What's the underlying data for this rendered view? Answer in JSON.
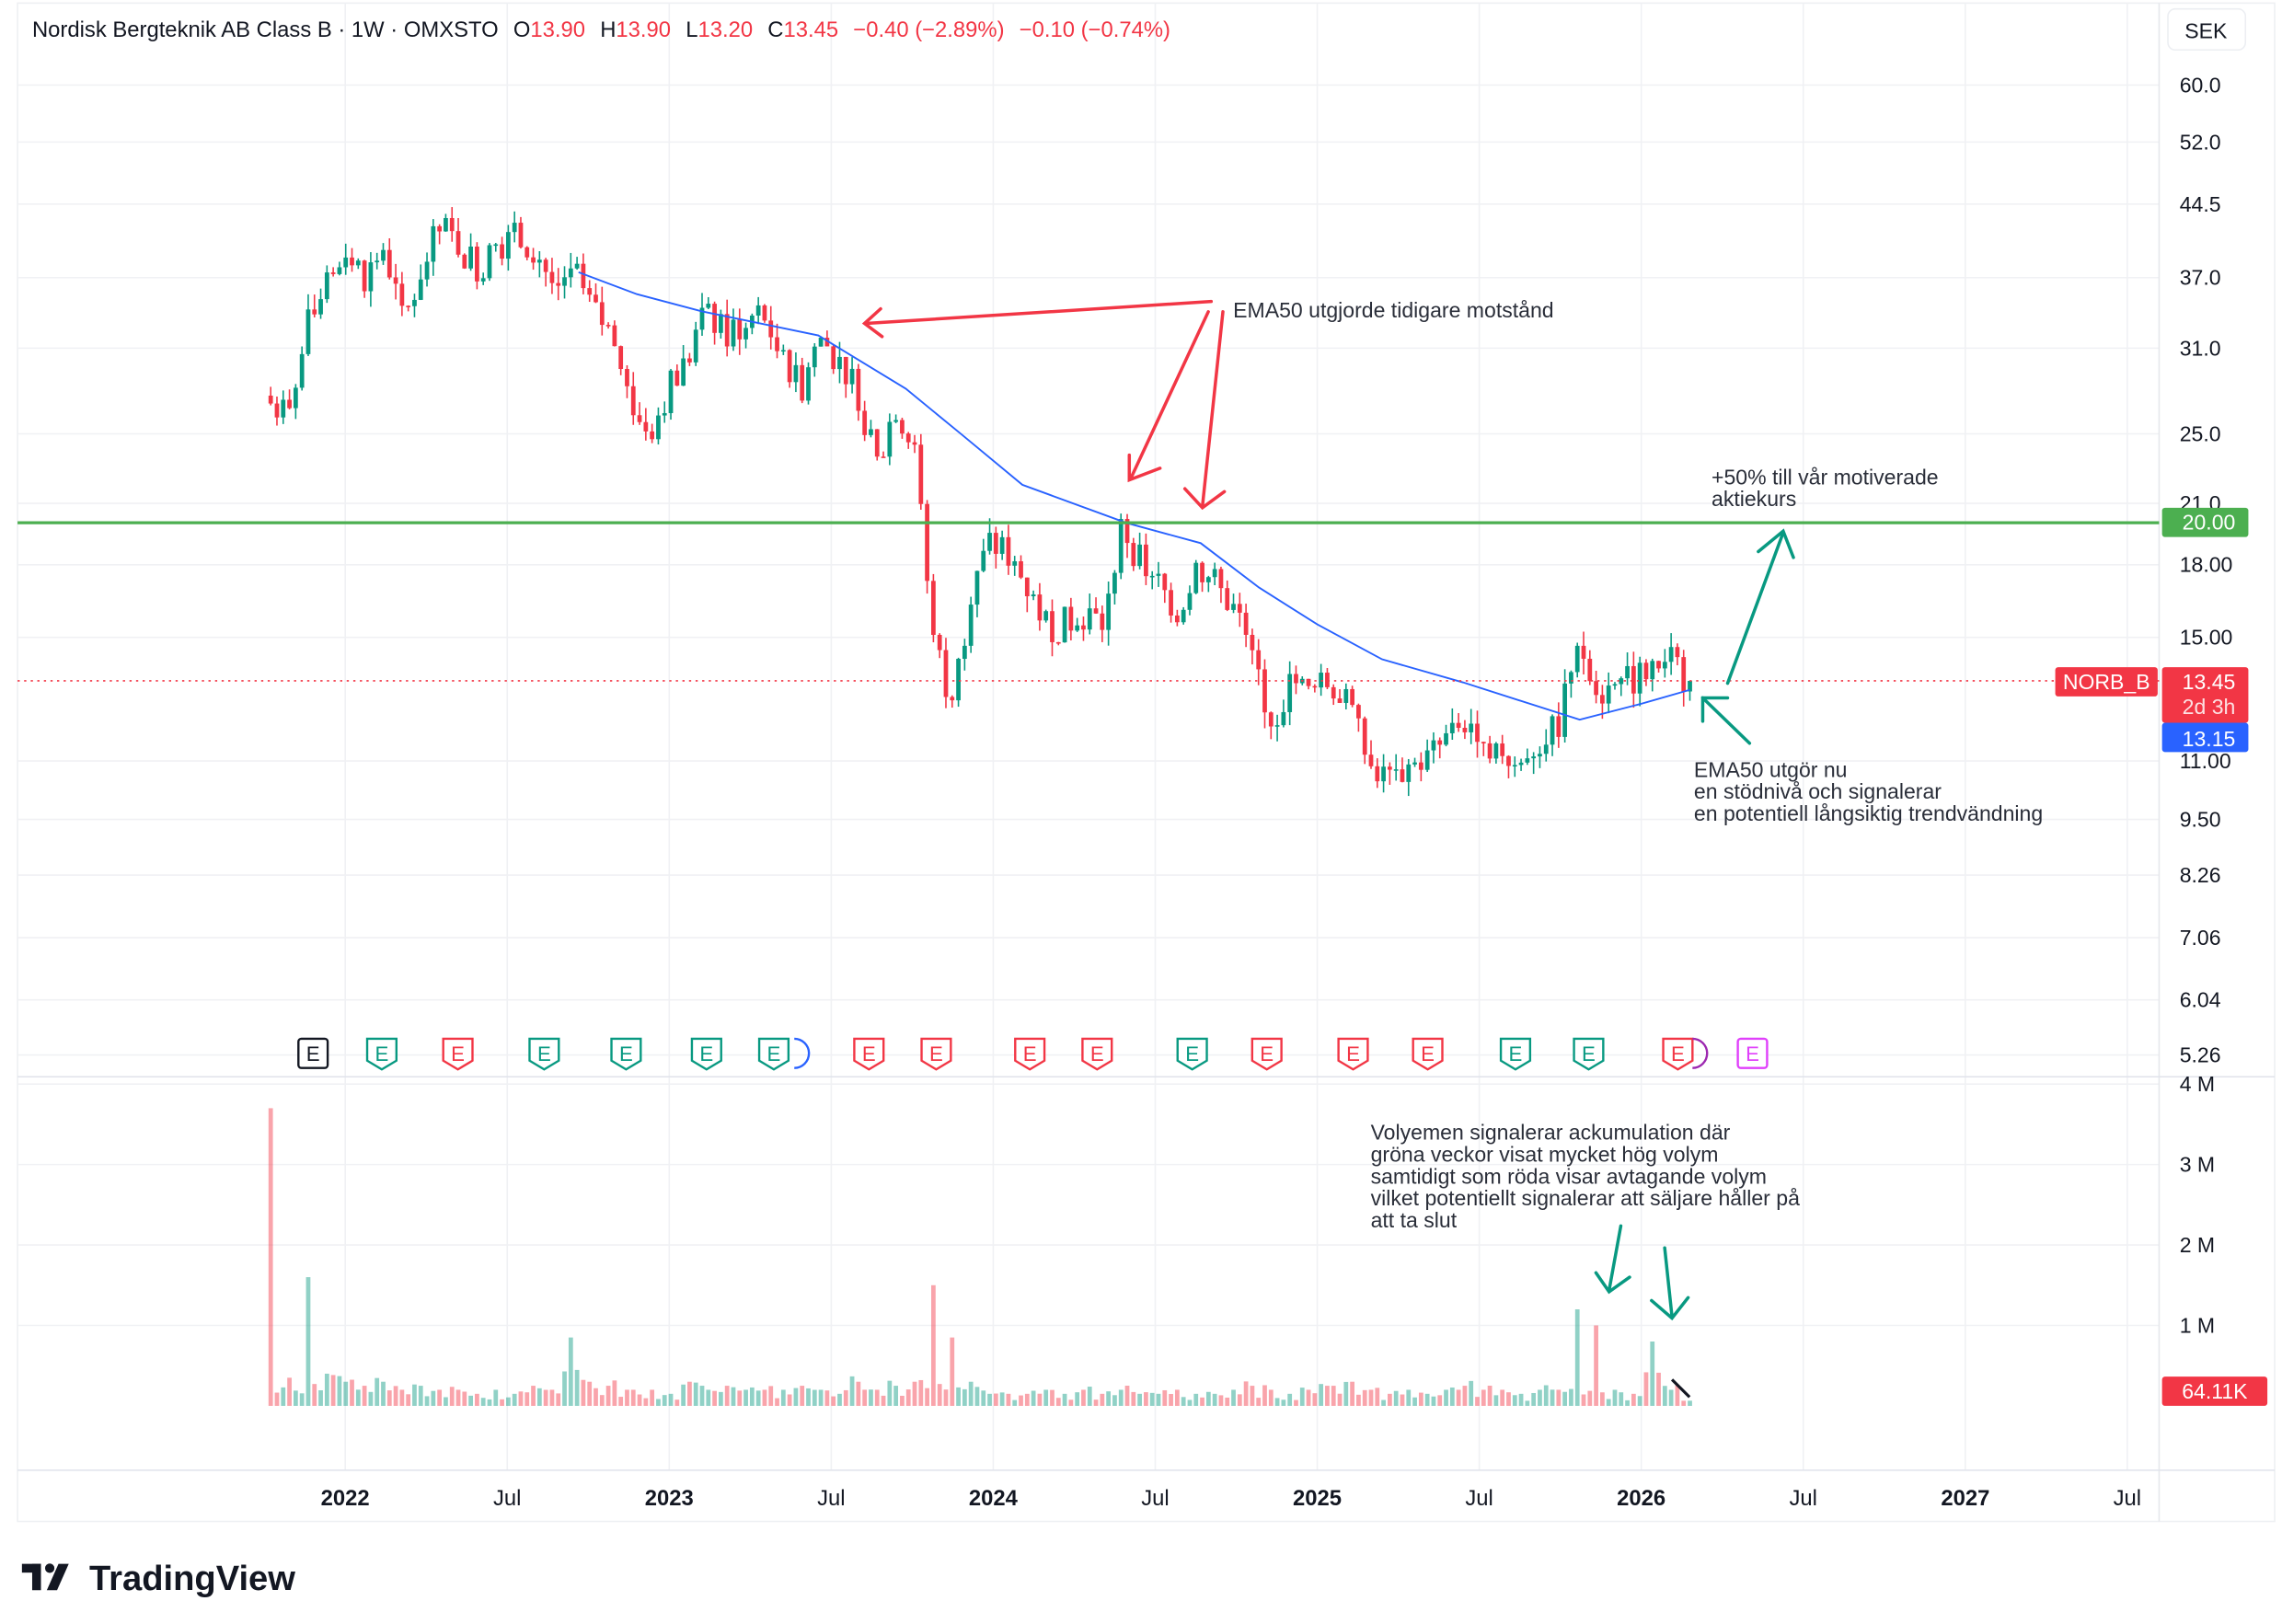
{
  "header": {
    "symbol_name": "Nordisk Bergteknik AB Class B · 1W · OMXSTO",
    "open_label": "O",
    "open": "13.90",
    "high_label": "H",
    "high": "13.90",
    "low_label": "L",
    "low": "13.20",
    "close_label": "C",
    "close": "13.45",
    "change": "−0.40 (−2.89%)",
    "change2": "−0.10 (−0.74%)"
  },
  "currency_button": "SEK",
  "price_axis": [
    "60.0",
    "52.0",
    "44.5",
    "37.0",
    "31.0",
    "25.0",
    "21.0",
    "18.00",
    "15.00",
    "11.00",
    "9.50",
    "8.26",
    "7.06",
    "6.04",
    "5.26"
  ],
  "volume_axis": [
    "4 M",
    "3 M",
    "2 M",
    "1 M"
  ],
  "time_axis": [
    {
      "label": "2022",
      "bold": true
    },
    {
      "label": "Jul",
      "bold": false
    },
    {
      "label": "2023",
      "bold": true
    },
    {
      "label": "Jul",
      "bold": false
    },
    {
      "label": "2024",
      "bold": true
    },
    {
      "label": "Jul",
      "bold": false
    },
    {
      "label": "2025",
      "bold": true
    },
    {
      "label": "Jul",
      "bold": false
    },
    {
      "label": "2026",
      "bold": true
    },
    {
      "label": "Jul",
      "bold": false
    },
    {
      "label": "2027",
      "bold": true
    },
    {
      "label": "Jul",
      "bold": false
    }
  ],
  "labels": {
    "target_level": "20.00",
    "symbol_tag": "NORB_B",
    "last_price": "13.45",
    "countdown": "2d 3h",
    "ema_value": "13.15",
    "last_volume": "64.11K"
  },
  "annotations": {
    "resistance": "EMA50 utgjorde tidigare motstånd",
    "target_line1": "+50% till vår motiverade",
    "target_line2": "aktiekurs",
    "support_line1": "EMA50 utgör nu",
    "support_line2": "en stödnivå och signalerar",
    "support_line3": "en potentiell långsiktig trendvändning",
    "volume_line1": "Volyemen signalerar ackumulation där",
    "volume_line2": "gröna veckor visat mycket hög volym",
    "volume_line3": "samtidigt som röda visar avtagande volym",
    "volume_line4": "vilket potentiellt signalerar att säljare håller på",
    "volume_line5": "att ta slut"
  },
  "earnings_marker_label": "E",
  "earnings_markers": [
    "neutral",
    "green",
    "red",
    "green",
    "green",
    "green",
    "green",
    "red",
    "red",
    "red",
    "red",
    "green",
    "red",
    "red",
    "red",
    "green",
    "green",
    "red",
    "future"
  ],
  "logo_text": "TradingView",
  "colors": {
    "up": "#089981",
    "down": "#F23645",
    "ema": "#2962FF",
    "target": "#4CAF50",
    "annotation_red": "#F23645",
    "annotation_green": "#089981"
  },
  "chart_data": {
    "type": "candlestick",
    "title": "Nordisk Bergteknik AB Class B · 1W · OMXSTO",
    "scale": "log",
    "ylim": [
      5.0,
      62.0
    ],
    "x_range_years": [
      2021.77,
      2026.15
    ],
    "close_anchors_approx": [
      27,
      26,
      33,
      36,
      40,
      37,
      40,
      33,
      38,
      42,
      40,
      38,
      40,
      41,
      40,
      36,
      38,
      34,
      32,
      27,
      25,
      28,
      30,
      34,
      32,
      33,
      34,
      30,
      28,
      32,
      30,
      28,
      23,
      27,
      24,
      15,
      12.5,
      17,
      19,
      18.5,
      17,
      15.5,
      15.5,
      16,
      15.5,
      20,
      18,
      17,
      16,
      18,
      17,
      16,
      14,
      12,
      13.5,
      13,
      13.5,
      12.5,
      11,
      10.5,
      10.8,
      11,
      11.5,
      12.2,
      12,
      11,
      11.2,
      11.5,
      12,
      15,
      13,
      13.2,
      13.5,
      14,
      14.2,
      13.45
    ],
    "volume_anchors_millions": [
      3.7,
      0.35,
      1.6,
      0.4,
      0.3,
      0.25,
      0.3,
      0.2,
      0.25,
      0.2,
      0.2,
      0.15,
      0.2,
      0.15,
      0.25,
      0.2,
      0.85,
      0.3,
      0.25,
      0.2,
      0.2,
      0.15,
      0.3,
      0.2,
      0.25,
      0.2,
      0.2,
      0.2,
      0.25,
      0.2,
      0.15,
      0.3,
      0.2,
      0.25,
      0.3,
      1.5,
      0.85,
      0.3,
      0.15,
      0.15,
      0.15,
      0.2,
      0.15,
      0.2,
      0.15,
      0.2,
      0.15,
      0.15,
      0.2,
      0.15,
      0.15,
      0.2,
      0.25,
      0.2,
      0.15,
      0.2,
      0.25,
      0.3,
      0.2,
      0.15,
      0.2,
      0.15,
      0.2,
      0.25,
      0.2,
      0.2,
      0.15,
      0.2,
      0.2,
      1.2,
      1.0,
      0.2,
      0.15,
      0.8,
      0.2,
      0.06411
    ],
    "ema50": [
      [
        2022.72,
        37.5
      ],
      [
        2022.9,
        35.5
      ],
      [
        2023.1,
        34
      ],
      [
        2023.46,
        32
      ],
      [
        2023.73,
        28
      ],
      [
        2023.9,
        25
      ],
      [
        2024.09,
        22
      ],
      [
        2024.41,
        20
      ],
      [
        2024.64,
        19
      ],
      [
        2024.82,
        17
      ],
      [
        2025.0,
        15.5
      ],
      [
        2025.2,
        14.2
      ],
      [
        2025.45,
        13.4
      ],
      [
        2025.81,
        12.2
      ],
      [
        2026.0,
        12.7
      ],
      [
        2026.15,
        13.15
      ]
    ],
    "horizontal_line": 20.0,
    "last_price": 13.45,
    "volume_ylim_millions": [
      0,
      4
    ]
  }
}
